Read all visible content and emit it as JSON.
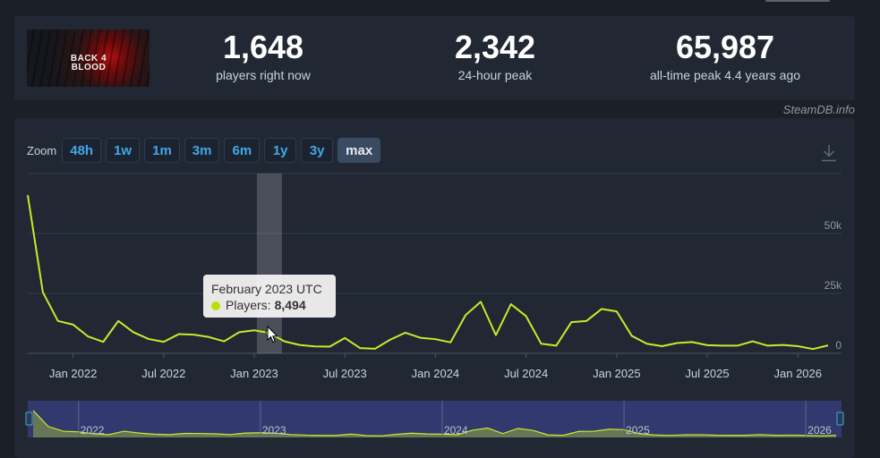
{
  "stats": [
    {
      "value": "1,648",
      "label": "players right now"
    },
    {
      "value": "2,342",
      "label": "24-hour peak"
    },
    {
      "value": "65,987",
      "label": "all-time peak 4.4 years ago"
    }
  ],
  "game_logo_text": "BACK 4 BLOOD",
  "credit": "SteamDB.info",
  "zoom": {
    "label": "Zoom",
    "buttons": [
      "48h",
      "1w",
      "1m",
      "3m",
      "6m",
      "1y",
      "3y",
      "max"
    ],
    "active": "max"
  },
  "tooltip": {
    "date": "February 2023 UTC",
    "series_label": "Players:",
    "value": "8,494"
  },
  "colors": {
    "line": "#c8ea2a",
    "panel": "#212834",
    "background": "#1b1f27",
    "accent": "#41a7e8",
    "navigator": "#333b72"
  },
  "icons": {
    "download": "download-icon",
    "cursor": "mouse-pointer-icon"
  },
  "chart_data": {
    "type": "line",
    "series": [
      {
        "name": "Players",
        "x": [
          "2021-10",
          "2021-11",
          "2021-12",
          "2022-01",
          "2022-02",
          "2022-03",
          "2022-04",
          "2022-05",
          "2022-06",
          "2022-07",
          "2022-08",
          "2022-09",
          "2022-10",
          "2022-11",
          "2022-12",
          "2023-01",
          "2023-02",
          "2023-03",
          "2023-04",
          "2023-05",
          "2023-06",
          "2023-07",
          "2023-08",
          "2023-09",
          "2023-10",
          "2023-11",
          "2023-12",
          "2024-01",
          "2024-02",
          "2024-03",
          "2024-04",
          "2024-05",
          "2024-06",
          "2024-07",
          "2024-08",
          "2024-09",
          "2024-10",
          "2024-11",
          "2024-12",
          "2025-01",
          "2025-02",
          "2025-03",
          "2025-04",
          "2025-05",
          "2025-06",
          "2025-07",
          "2025-08",
          "2025-09",
          "2025-10",
          "2025-11",
          "2025-12",
          "2026-01",
          "2026-02",
          "2026-03"
        ],
        "values": [
          65987,
          25500,
          13500,
          12000,
          7000,
          4800,
          13500,
          8800,
          6000,
          4800,
          8000,
          7800,
          6800,
          5000,
          8800,
          9600,
          8494,
          5000,
          3500,
          2900,
          2800,
          6400,
          2200,
          1900,
          5700,
          8600,
          6500,
          5900,
          4600,
          16000,
          21500,
          7600,
          20500,
          15500,
          4000,
          3200,
          13000,
          13500,
          18500,
          17500,
          7300,
          4000,
          3000,
          4300,
          4700,
          3400,
          3200,
          3200,
          5000,
          3200,
          3500,
          3000,
          1800,
          3300
        ]
      }
    ],
    "x_ticks": [
      "Jan 2022",
      "Jul 2022",
      "Jan 2023",
      "Jul 2023",
      "Jan 2024",
      "Jul 2024",
      "Jan 2025",
      "Jul 2025",
      "Jan 2026"
    ],
    "y_ticks": [
      "50k",
      "25k",
      "0"
    ],
    "ylim": [
      0,
      75000
    ],
    "navigator_ticks": [
      "2022",
      "2023",
      "2024",
      "2025",
      "2026"
    ],
    "grid": true,
    "highlight": "2023-02"
  }
}
